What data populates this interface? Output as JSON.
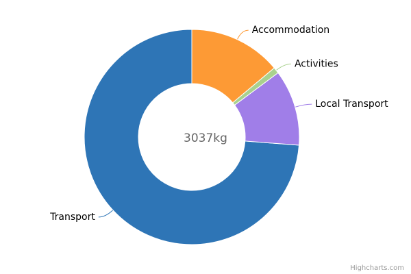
{
  "chart_data": {
    "type": "donut",
    "center_label": "3037kg",
    "categories": [
      "Accommodation",
      "Activities",
      "Local Transport",
      "Transport"
    ],
    "values": [
      422,
      28,
      346,
      2241
    ],
    "colors": [
      "#fd9a35",
      "#a9d18e",
      "#a07ee8",
      "#2e75b6"
    ],
    "credits": "Highcharts.com"
  }
}
